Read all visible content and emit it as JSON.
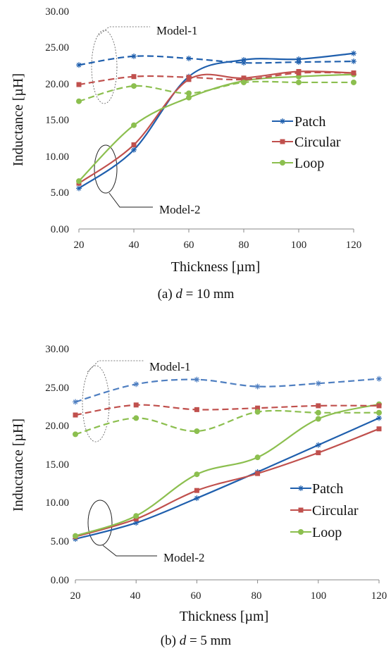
{
  "chart_data": [
    {
      "type": "line",
      "caption": {
        "prefix": "(a) ",
        "var": "d",
        "rest": " = 10 mm"
      },
      "xlabel": "Thickness [µm]",
      "ylabel": "Inductance [µH]",
      "x": [
        20,
        40,
        60,
        80,
        100,
        120
      ],
      "xticks": [
        "20",
        "40",
        "60",
        "80",
        "100",
        "120"
      ],
      "ylim": [
        0,
        30
      ],
      "yticks": [
        "0.00",
        "5.00",
        "10.00",
        "15.00",
        "20.00",
        "25.00",
        "30.00"
      ],
      "legend_position": "right",
      "annotations": [
        "Model-1",
        "Model-2"
      ],
      "series": [
        {
          "name": "Patch",
          "model": 2,
          "dash": false,
          "color": "#1f5fad",
          "marker": "asterisk",
          "values": [
            5.6,
            10.9,
            21.0,
            23.3,
            23.4,
            24.2
          ]
        },
        {
          "name": "Circular",
          "model": 2,
          "dash": false,
          "color": "#c0504d",
          "marker": "square",
          "values": [
            6.3,
            11.6,
            20.6,
            20.8,
            21.7,
            21.5
          ]
        },
        {
          "name": "Loop",
          "model": 2,
          "dash": false,
          "color": "#8cbf4f",
          "marker": "circle",
          "values": [
            6.6,
            14.3,
            18.1,
            20.4,
            21.0,
            21.3
          ]
        },
        {
          "model": 1,
          "dash": true,
          "color": "#1f5fad",
          "marker": "asterisk",
          "values": [
            22.6,
            23.8,
            23.5,
            22.9,
            23.0,
            23.1
          ]
        },
        {
          "model": 1,
          "dash": true,
          "color": "#c0504d",
          "marker": "square",
          "values": [
            19.9,
            21.0,
            20.9,
            20.6,
            21.5,
            21.5
          ]
        },
        {
          "model": 1,
          "dash": true,
          "color": "#8cbf4f",
          "marker": "circle",
          "values": [
            17.6,
            19.7,
            18.7,
            20.2,
            20.2,
            20.2
          ]
        }
      ]
    },
    {
      "type": "line",
      "caption": {
        "prefix": "(b) ",
        "var": "d",
        "rest": " = 5 mm"
      },
      "xlabel": "Thickness [µm]",
      "ylabel": "Inductance [µH]",
      "x": [
        20,
        40,
        60,
        80,
        100,
        120
      ],
      "xticks": [
        "20",
        "40",
        "60",
        "80",
        "100",
        "120"
      ],
      "ylim": [
        0,
        30
      ],
      "yticks": [
        "0.00",
        "5.00",
        "10.00",
        "15.00",
        "20.00",
        "25.00",
        "30.00"
      ],
      "legend_position": "right",
      "annotations": [
        "Model-1",
        "Model-2"
      ],
      "series": [
        {
          "name": "Patch",
          "model": 2,
          "dash": false,
          "color": "#1f5fad",
          "marker": "asterisk",
          "values": [
            5.3,
            7.4,
            10.6,
            14.0,
            17.5,
            21.0
          ]
        },
        {
          "name": "Circular",
          "model": 2,
          "dash": false,
          "color": "#c0504d",
          "marker": "square",
          "values": [
            5.6,
            7.9,
            11.6,
            13.8,
            16.5,
            19.6
          ]
        },
        {
          "name": "Loop",
          "model": 2,
          "dash": false,
          "color": "#8cbf4f",
          "marker": "circle",
          "values": [
            5.7,
            8.3,
            13.7,
            15.9,
            20.9,
            22.8
          ]
        },
        {
          "model": 1,
          "dash": true,
          "color": "#4f7fc1",
          "marker": "asterisk",
          "values": [
            23.1,
            25.4,
            26.0,
            25.1,
            25.5,
            26.1
          ]
        },
        {
          "model": 1,
          "dash": true,
          "color": "#c0504d",
          "marker": "square",
          "values": [
            21.4,
            22.7,
            22.1,
            22.3,
            22.6,
            22.6
          ]
        },
        {
          "model": 1,
          "dash": true,
          "color": "#8cbf4f",
          "marker": "circle",
          "values": [
            18.9,
            21.0,
            19.3,
            21.8,
            21.7,
            21.7
          ]
        }
      ]
    }
  ]
}
